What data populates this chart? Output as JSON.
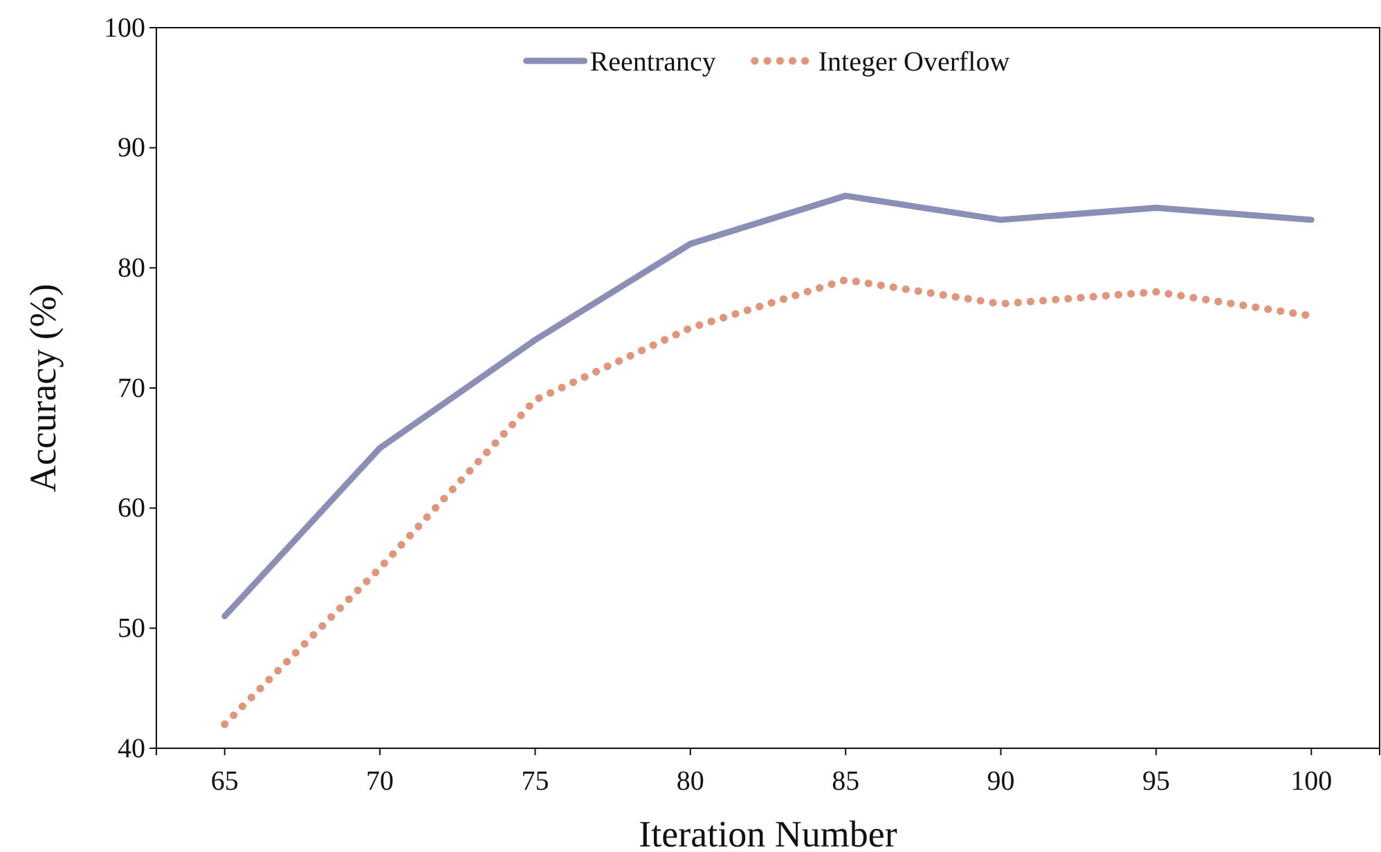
{
  "chart_data": {
    "type": "line",
    "xlabel": "Iteration Number",
    "ylabel": "Accuracy (%)",
    "categories": [
      "65",
      "70",
      "75",
      "80",
      "85",
      "90",
      "95",
      "100"
    ],
    "series": [
      {
        "name": "Reentrancy",
        "color": "#8b8fb5",
        "line_style": "solid",
        "values": [
          51,
          65,
          74,
          82,
          86,
          84,
          85,
          84
        ]
      },
      {
        "name": "Integer Overflow",
        "color": "#e0967a",
        "line_style": "dotted",
        "values": [
          42,
          55,
          69,
          75,
          79,
          77,
          78,
          76
        ]
      }
    ],
    "ylim": [
      40,
      100
    ],
    "yticks": [
      40,
      50,
      60,
      70,
      80,
      90,
      100
    ],
    "grid": false,
    "legend": "top",
    "marker": "none"
  }
}
